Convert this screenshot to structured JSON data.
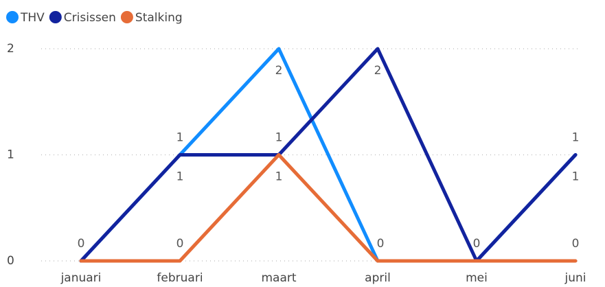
{
  "chart_data": {
    "type": "line",
    "categories": [
      "januari",
      "februari",
      "maart",
      "april",
      "mei",
      "juni"
    ],
    "series": [
      {
        "name": "THV",
        "color": "#118DFF",
        "values": [
          0,
          1,
          2,
          0,
          0,
          1
        ]
      },
      {
        "name": "Crisissen",
        "color": "#12239E",
        "values": [
          0,
          1,
          1,
          2,
          0,
          1
        ]
      },
      {
        "name": "Stalking",
        "color": "#E66C37",
        "values": [
          0,
          0,
          1,
          0,
          0,
          0
        ]
      }
    ],
    "ylim": [
      0,
      2
    ],
    "yticks": [
      0,
      1,
      2
    ],
    "grid": true,
    "legend": "top-left"
  }
}
